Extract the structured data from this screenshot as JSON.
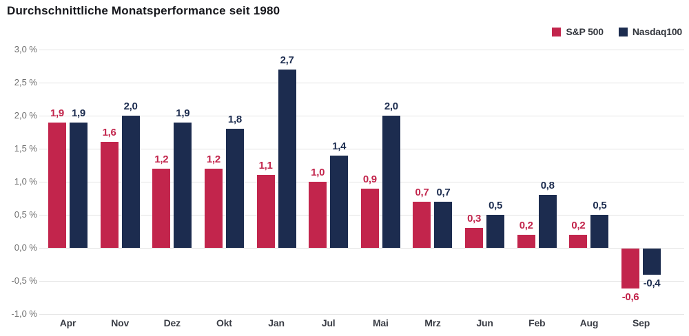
{
  "title": "Durchschnittliche Monatsperformance seit 1980",
  "legend": {
    "items": [
      {
        "label": "S&P 500",
        "color": "#c2254c"
      },
      {
        "label": "Nasdaq100",
        "color": "#1c2c4f"
      }
    ]
  },
  "chart_data": {
    "type": "bar",
    "title": "Durchschnittliche Monatsperformance seit 1980",
    "categories": [
      "Apr",
      "Nov",
      "Dez",
      "Okt",
      "Jan",
      "Jul",
      "Mai",
      "Mrz",
      "Jun",
      "Feb",
      "Aug",
      "Sep"
    ],
    "series": [
      {
        "name": "S&P 500",
        "color": "#c2254c",
        "values": [
          1.9,
          1.6,
          1.2,
          1.2,
          1.1,
          1.0,
          0.9,
          0.7,
          0.3,
          0.2,
          0.2,
          -0.6
        ]
      },
      {
        "name": "Nasdaq100",
        "color": "#1c2c4f",
        "values": [
          1.9,
          2.0,
          1.9,
          1.8,
          2.7,
          1.4,
          2.0,
          0.7,
          0.5,
          0.8,
          0.5,
          -0.4
        ]
      }
    ],
    "xlabel": "",
    "ylabel": "",
    "ylim": [
      -1.0,
      3.0
    ],
    "ytick_step": 0.5,
    "ytick_suffix": " %",
    "decimal_separator": ",",
    "data_labels": true,
    "grid": true,
    "legend_position": "top-right",
    "yaxis_tick_labels": [
      "3,0 %",
      "2,5 %",
      "2,0 %",
      "1,5 %",
      "1,0 %",
      "0,5 %",
      "0,0 %",
      "-0,5 %",
      "-1,0 %"
    ]
  }
}
